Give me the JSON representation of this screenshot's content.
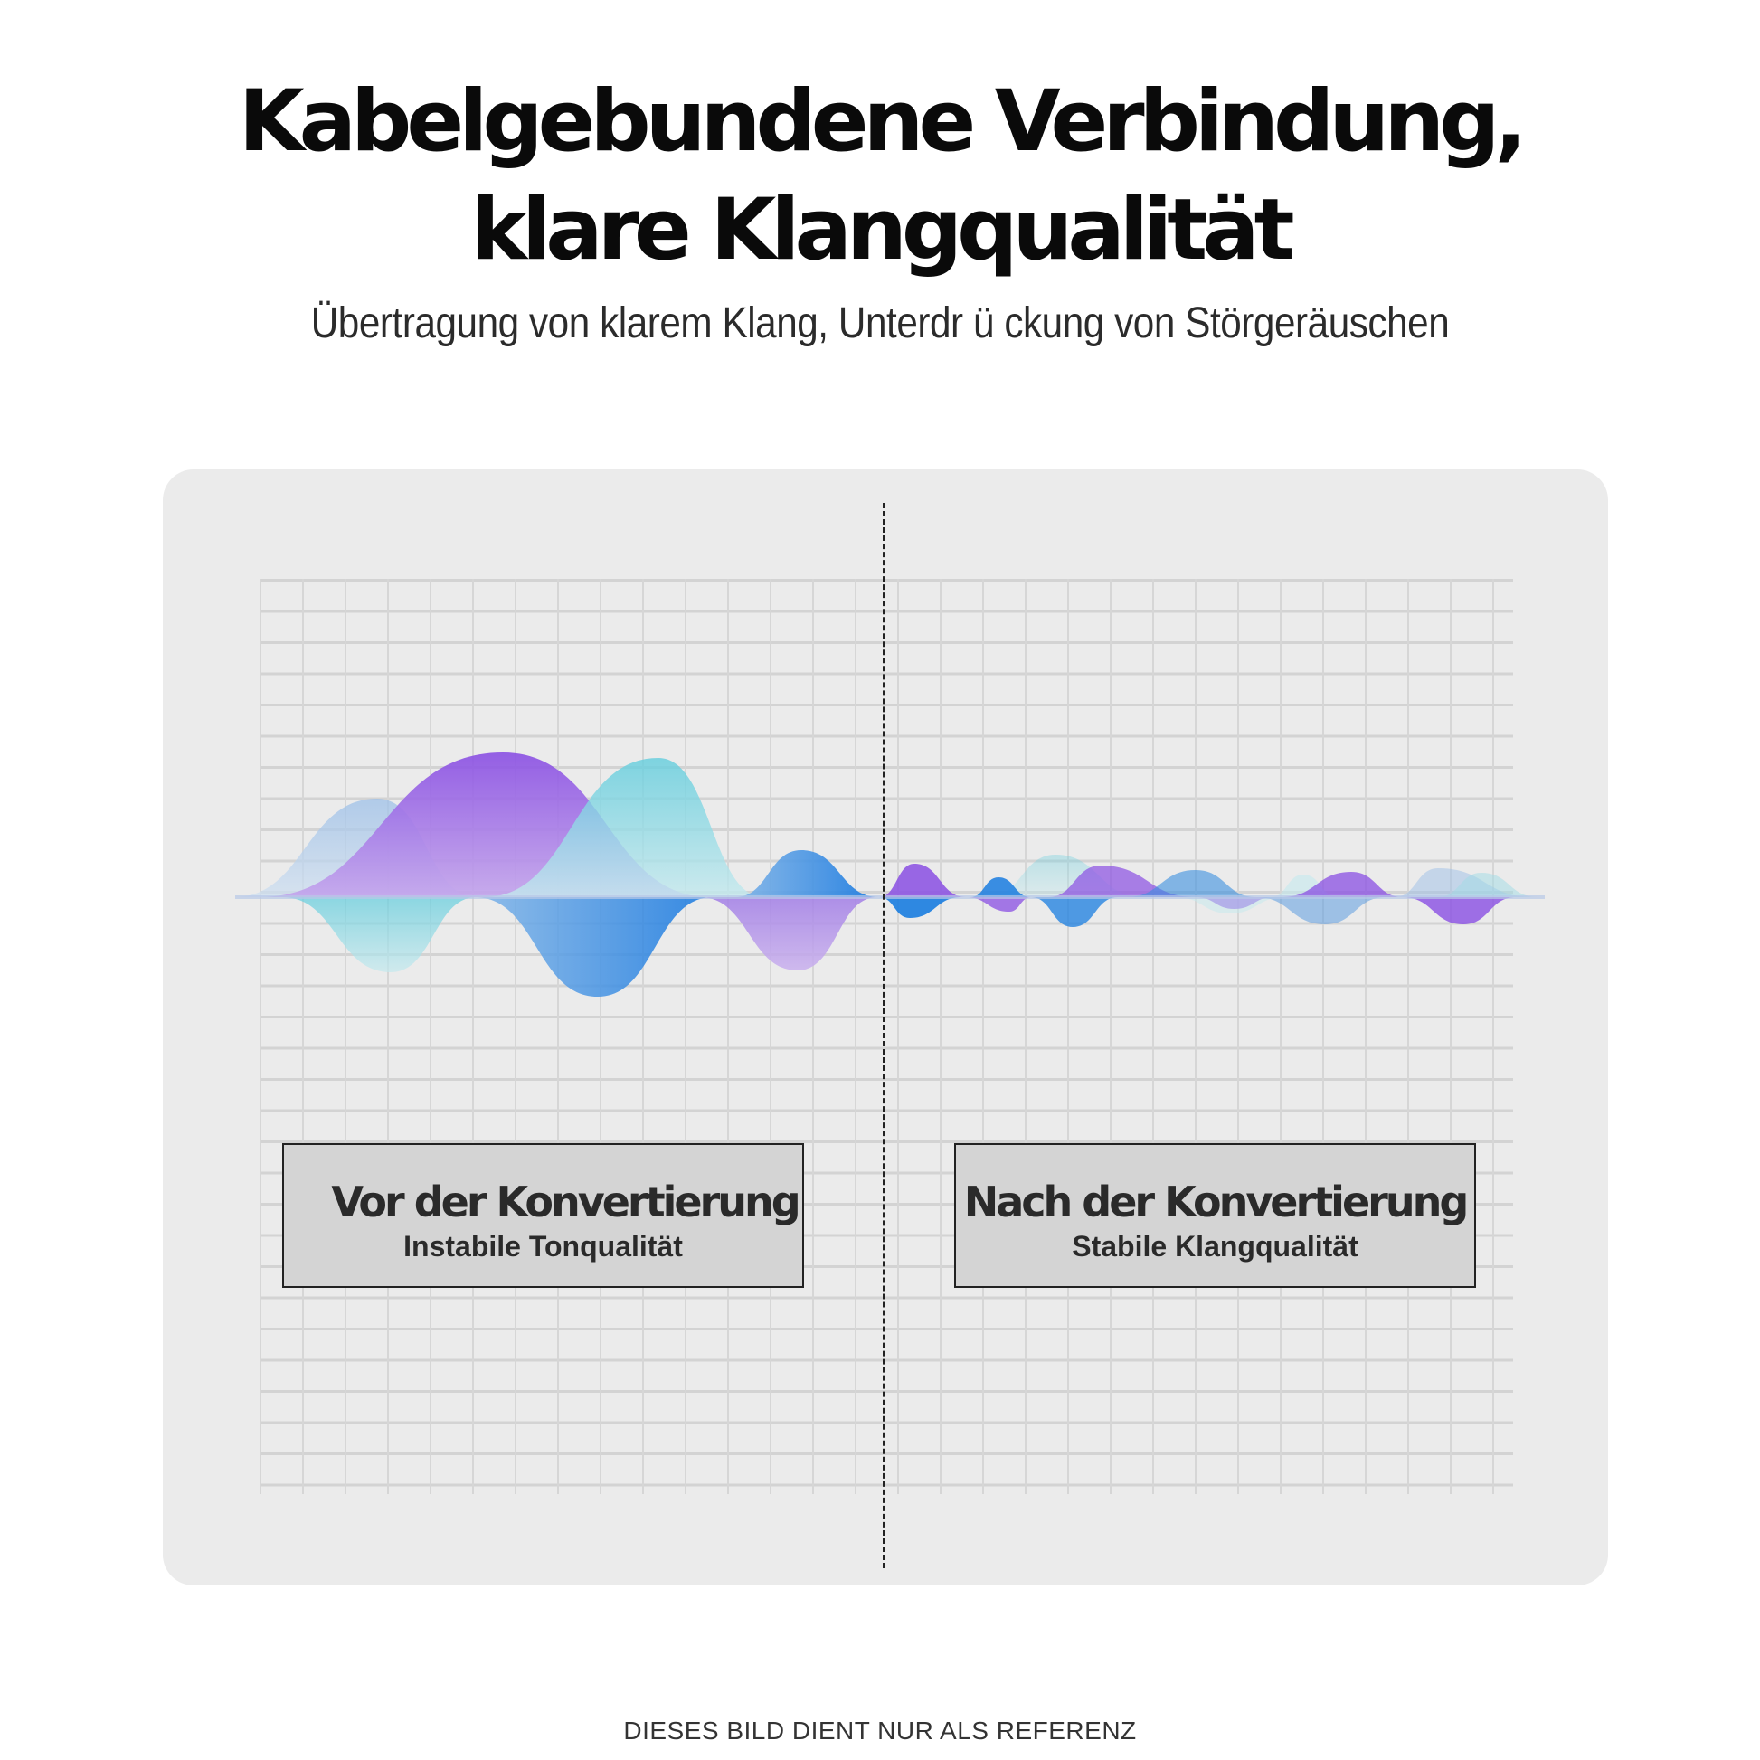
{
  "header": {
    "title_line1": "Kabelgebundene Verbindung,",
    "title_line2": "klare Klangqualität",
    "subtitle": "Übertragung von klarem Klang, Unterdr ü ckung von Störgeräuschen"
  },
  "comparison": {
    "before": {
      "title": "Vor der Konvertierung",
      "subtitle": "Instabile Tonqualität"
    },
    "after": {
      "title": "Nach der Konvertierung",
      "subtitle": "Stabile Klangqualität"
    }
  },
  "colors": {
    "purple": "#8a4fe3",
    "cyan": "#67d0df",
    "blue": "#1a7de0",
    "light_blue": "#9cc2e8",
    "card_bg": "#ebebeb",
    "box_bg": "#d4d4d4"
  },
  "footer": "DIESES BILD DIENT NUR ALS REFERENZ"
}
